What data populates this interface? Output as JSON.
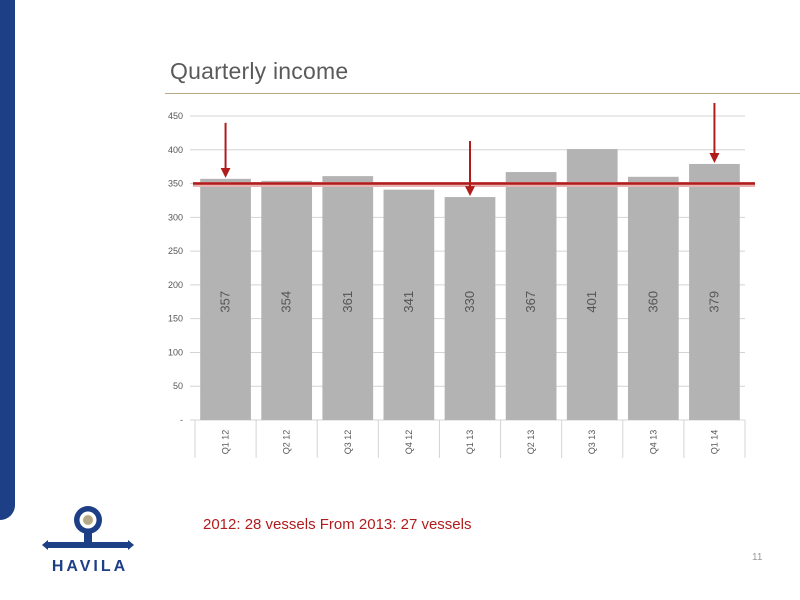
{
  "slide": {
    "title": "Quarterly income",
    "note": "2012: 28 vessels From 2013: 27 vessels",
    "page_number": "11"
  },
  "logo": {
    "text": "HAVILA",
    "icon": "havila-anchor-logo-icon"
  },
  "colors": {
    "brand_blue": "#1d3f86",
    "bar": "#b3b3b3",
    "accent_red": "#b01c1c",
    "title_rule": "#b7a985"
  },
  "chart_data": {
    "type": "bar",
    "title": "",
    "categories": [
      "Q1 12",
      "Q2 12",
      "Q3 12",
      "Q4 12",
      "Q1 13",
      "Q2 13",
      "Q3 13",
      "Q4 13",
      "Q1 14"
    ],
    "values": [
      357,
      354,
      361,
      341,
      330,
      367,
      401,
      360,
      379
    ],
    "value_labels": [
      "357",
      "354",
      "361",
      "341",
      "330",
      "367",
      "401",
      "360",
      "379"
    ],
    "yticks": [
      0,
      50,
      100,
      150,
      200,
      250,
      300,
      350,
      400,
      450
    ],
    "ytick_labels": [
      "-",
      "50",
      "100",
      "150",
      "200",
      "250",
      "300",
      "350",
      "400",
      "450"
    ],
    "ylim": [
      0,
      450
    ],
    "grid": true,
    "reference_line": {
      "value": 350,
      "color": "#b01c1c"
    },
    "highlight_arrows": [
      "Q1 12",
      "Q1 13",
      "Q1 14"
    ],
    "xlabel": "",
    "ylabel": ""
  }
}
